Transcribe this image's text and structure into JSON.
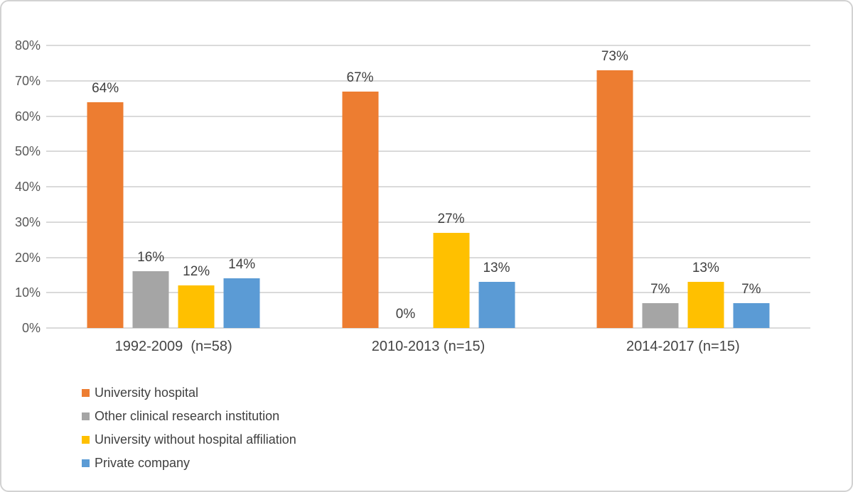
{
  "chart_data": {
    "type": "bar",
    "title": "",
    "categories": [
      "1992-2009  (n=58)",
      "2010-2013 (n=15)",
      "2014-2017 (n=15)"
    ],
    "series": [
      {
        "name": "University hospital",
        "color": "#ED7D31",
        "values": [
          64,
          67,
          73
        ]
      },
      {
        "name": "Other clinical research institution",
        "color": "#A5A5A5",
        "values": [
          16,
          0,
          7
        ]
      },
      {
        "name": "University without hospital affiliation",
        "color": "#FFC000",
        "values": [
          12,
          27,
          13
        ]
      },
      {
        "name": "Private company",
        "color": "#5B9BD5",
        "values": [
          14,
          13,
          7
        ]
      }
    ],
    "value_suffix": "%",
    "data_labels": true,
    "xlabel": "",
    "ylabel": "",
    "ylim": [
      0,
      80
    ],
    "ytick_step": 10,
    "ytick_labels": [
      "0%",
      "10%",
      "20%",
      "30%",
      "40%",
      "50%",
      "60%",
      "70%",
      "80%"
    ],
    "grid": true,
    "grid_color": "#DADADA",
    "axis_text_color": "#595959",
    "label_text_color": "#404040",
    "legend_position": "bottom-left"
  }
}
